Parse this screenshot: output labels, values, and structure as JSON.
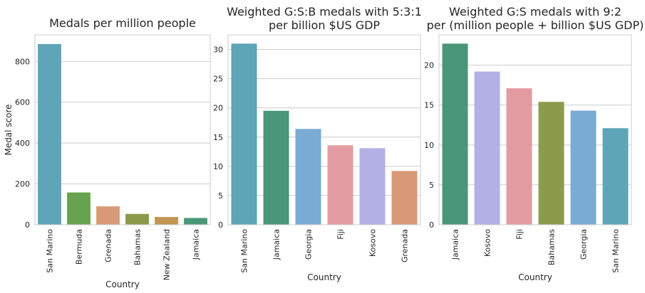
{
  "chart_data": [
    {
      "type": "bar",
      "title": [
        "Medals per million people"
      ],
      "xlabel": "Country",
      "ylabel": "Medal score",
      "categories": [
        "San Marino",
        "Bermuda",
        "Grenada",
        "Bahamas",
        "New Zealand",
        "Jamaica"
      ],
      "values": [
        885,
        158,
        90,
        53,
        38,
        33
      ],
      "colors": [
        "#5ea5b8",
        "#67a24f",
        "#d89978",
        "#8c9a4b",
        "#c09552",
        "#4a9678"
      ],
      "ylim": [
        0,
        930
      ],
      "yticks": [
        0,
        200,
        400,
        600,
        800
      ],
      "grid": "horizontal"
    },
    {
      "type": "bar",
      "title": [
        "Weighted G:S:B medals with 5:3:1",
        "per billion $US GDP"
      ],
      "xlabel": "Country",
      "ylabel": "",
      "categories": [
        "San Marino",
        "Jamaica",
        "Georgia",
        "Fiji",
        "Kosovo",
        "Grenada"
      ],
      "values": [
        31.0,
        19.5,
        16.4,
        13.6,
        13.1,
        9.2
      ],
      "colors": [
        "#5ea5b8",
        "#4a9678",
        "#7aabd5",
        "#e39ba2",
        "#b3b0e6",
        "#d89978"
      ],
      "ylim": [
        0,
        32.5
      ],
      "yticks": [
        0,
        5,
        10,
        15,
        20,
        25,
        30
      ],
      "grid": "horizontal"
    },
    {
      "type": "bar",
      "title": [
        "Weighted G:S medals with 9:2",
        "per (million people + billion $US GDP)"
      ],
      "xlabel": "Country",
      "ylabel": "",
      "categories": [
        "Jamaica",
        "Kosovo",
        "Fiji",
        "Bahamas",
        "Georgia",
        "San Marino"
      ],
      "values": [
        22.7,
        19.2,
        17.1,
        15.4,
        14.3,
        12.1
      ],
      "colors": [
        "#4a9678",
        "#b3b0e6",
        "#e39ba2",
        "#8c9a4b",
        "#7aabd5",
        "#5ea5b8"
      ],
      "ylim": [
        0,
        23.8
      ],
      "yticks": [
        0,
        5,
        10,
        15,
        20
      ],
      "grid": "horizontal"
    }
  ]
}
